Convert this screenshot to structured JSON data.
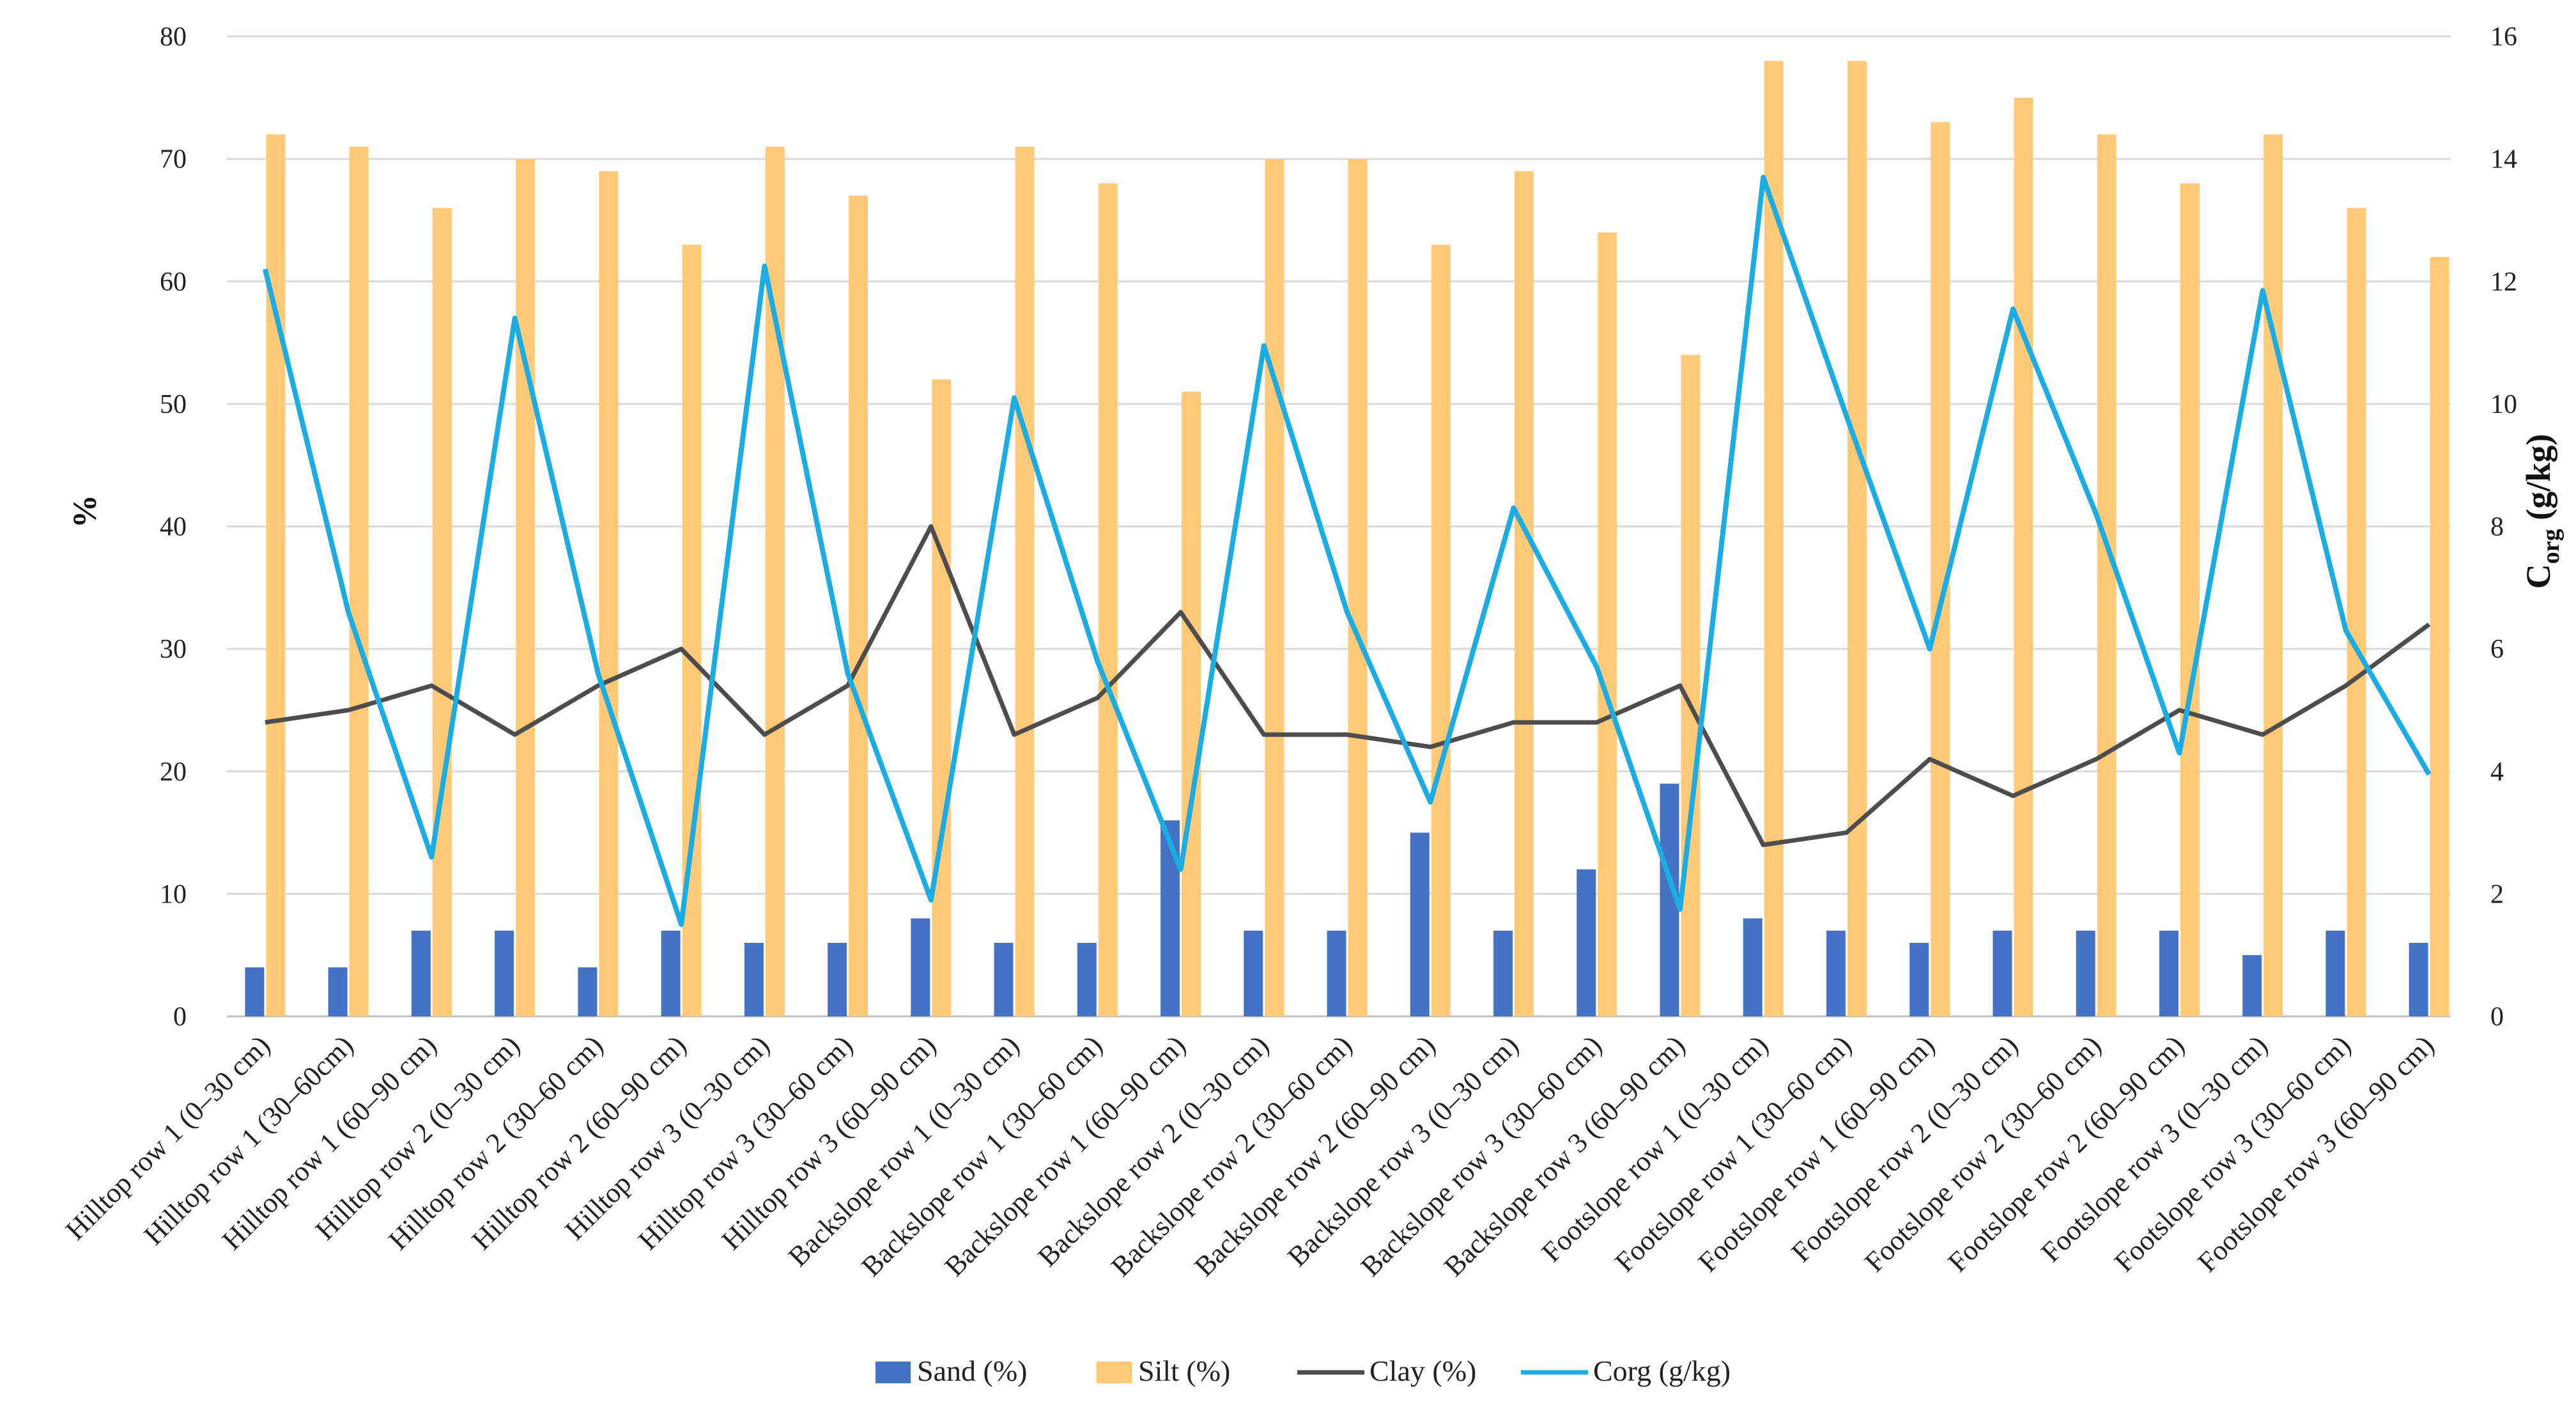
{
  "chart_data": {
    "type": "bar",
    "categories": [
      "Hilltop row 1 (0–30 cm)",
      "Hilltop row 1 (30–60cm)",
      "Hilltop row 1 (60–90 cm)",
      "Hilltop row 2 (0–30 cm)",
      "Hilltop row 2 (30–60 cm)",
      "Hilltop row 2 (60–90 cm)",
      "Hilltop row 3 (0–30 cm)",
      "Hilltop row 3 (30–60 cm)",
      "Hilltop row 3 (60–90 cm)",
      "Backslope row 1 (0–30 cm)",
      "Backslope row 1 (30–60 cm)",
      "Backslope row 1 (60–90 cm)",
      "Backslope row 2 (0–30 cm)",
      "Backslope row 2 (30–60 cm)",
      "Backslope row 2 (60–90 cm)",
      "Backslope row 3 (0–30 cm)",
      "Backslope row 3 (30–60 cm)",
      "Backslope row 3 (60–90 cm)",
      "Footslope row 1 (0–30 cm)",
      "Footslope row 1 (30–60 cm)",
      "Footslope row 1 (60–90 cm)",
      "Footslope row 2 (0–30 cm)",
      "Footslope row 2 (30–60 cm)",
      "Footslope row 2 (60–90 cm)",
      "Footslope row 3 (0–30 cm)",
      "Footslope row 3 (30–60 cm)",
      "Footslope row 3 (60–90 cm)"
    ],
    "series": [
      {
        "name": "Sand (%)",
        "kind": "bar",
        "axis": "left",
        "color": "#4472C4",
        "values": [
          4,
          4,
          7,
          7,
          4,
          7,
          6,
          6,
          8,
          6,
          6,
          16,
          7,
          7,
          15,
          7,
          12,
          19,
          8,
          7,
          6,
          7,
          7,
          7,
          5,
          7,
          6
        ]
      },
      {
        "name": "Silt (%)",
        "kind": "bar",
        "axis": "left",
        "color": "#FFC978",
        "values": [
          72,
          71,
          66,
          70,
          69,
          63,
          71,
          67,
          52,
          71,
          68,
          51,
          70,
          70,
          63,
          69,
          64,
          54,
          78,
          78,
          73,
          75,
          72,
          68,
          72,
          66,
          62
        ]
      },
      {
        "name": "Clay (%)",
        "kind": "line",
        "axis": "left",
        "color": "#4D4D4D",
        "values": [
          24,
          25,
          27,
          23,
          27,
          30,
          23,
          27,
          40,
          23,
          26,
          33,
          23,
          23,
          22,
          24,
          24,
          27,
          14,
          15,
          21,
          18,
          21,
          25,
          23,
          27,
          32
        ]
      },
      {
        "name": "Corg (g/kg)",
        "kind": "line",
        "axis": "right",
        "color": "#1AACE3",
        "values": [
          12.2,
          6.6,
          2.6,
          11.4,
          5.6,
          1.5,
          12.25,
          5.6,
          1.9,
          10.1,
          5.8,
          2.4,
          10.95,
          6.6,
          3.5,
          8.3,
          5.7,
          1.75,
          13.7,
          9.8,
          6.0,
          11.55,
          8.2,
          4.3,
          11.85,
          6.3,
          3.95
        ]
      }
    ],
    "yleft": {
      "label": "%",
      "lim": [
        0,
        80
      ],
      "ticks": [
        "0",
        "10",
        "20",
        "30",
        "40",
        "50",
        "60",
        "70",
        "80"
      ]
    },
    "yright": {
      "label": "C",
      "label_sub": "org",
      "label_rest": " (g/kg)",
      "lim": [
        0,
        16
      ],
      "ticks": [
        "0",
        "2",
        "4",
        "6",
        "8",
        "10",
        "12",
        "14",
        "16"
      ]
    },
    "grid": true,
    "legend_position": "bottom-center",
    "legend": [
      "Sand (%)",
      "Silt (%)",
      "Clay (%)",
      "Corg (g/kg)"
    ]
  }
}
